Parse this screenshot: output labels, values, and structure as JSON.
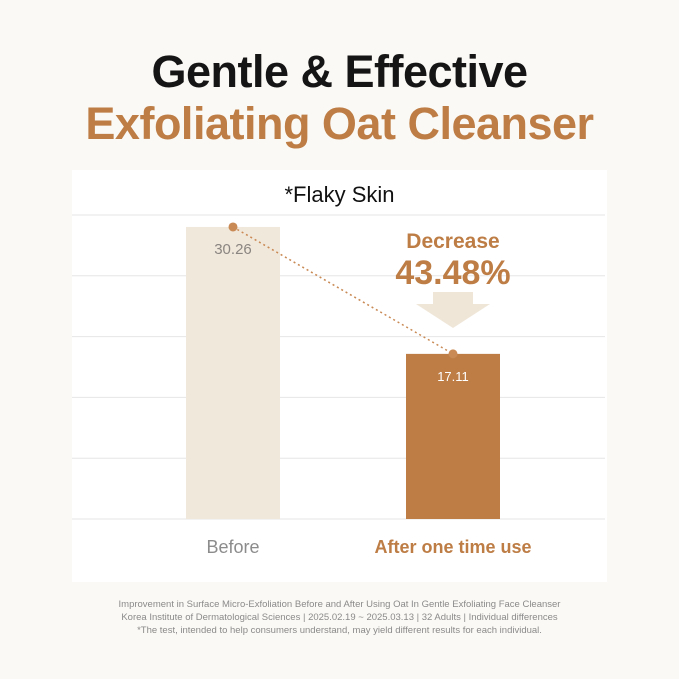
{
  "header": {
    "title_line1": "Gentle & Effective",
    "title_line2": "Exfoliating Oat Cleanser"
  },
  "chart_data": {
    "type": "bar",
    "title": "*Flaky Skin",
    "categories": [
      "Before",
      "After one time use"
    ],
    "values": [
      30.26,
      17.11
    ],
    "value_labels": [
      "30.26",
      "17.11"
    ],
    "ylim": [
      0,
      31.5
    ],
    "grid": true,
    "bar_colors": [
      "#f1e8dc",
      "#bd7d45"
    ],
    "line_color": "#c98a55",
    "annotation": {
      "label": "Decrease",
      "value": "43.48%"
    }
  },
  "colors": {
    "accent": "#bd7d45",
    "title": "#151515"
  },
  "footer": {
    "lines": [
      "Improvement in Surface Micro-Exfoliation Before and After Using Oat In Gentle Exfoliating Face Cleanser",
      "Korea Institute of Dermatological Sciences | 2025.02.19 ~ 2025.03.13 | 32 Adults | Individual differences",
      "*The test, intended to help consumers understand, may yield different results for each individual."
    ]
  }
}
